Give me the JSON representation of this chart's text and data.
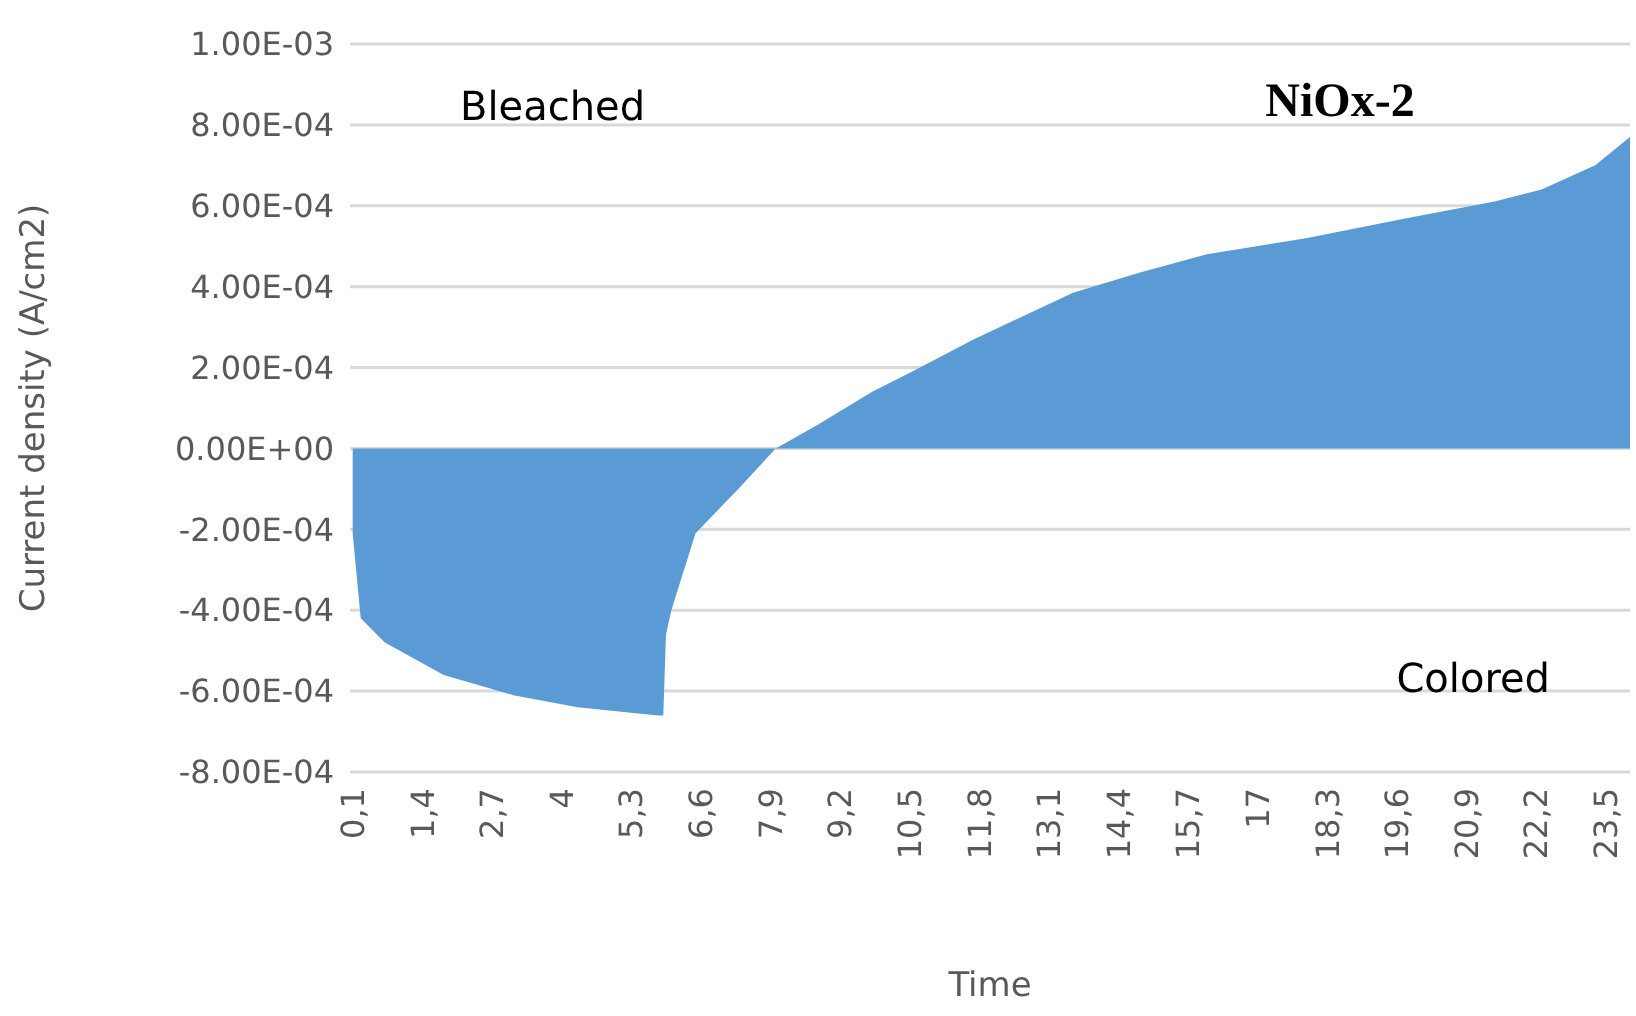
{
  "chart_data": {
    "type": "area",
    "title": "NiOx-2",
    "xlabel": "Time",
    "ylabel": "Current density (A/cm2)",
    "color": "#5b9bd5",
    "annotations": [
      "Bleached",
      "Colored"
    ],
    "x": [
      0.1,
      0.25,
      0.7,
      1.8,
      3.1,
      4.3,
      5.8,
      5.9,
      5.95,
      6.05,
      6.5,
      7.3,
      8.0,
      8.8,
      9.8,
      10.55,
      11.7,
      13.55,
      14.8,
      16.05,
      17.9,
      19.8,
      21.4,
      22.3,
      23.3,
      23.95
    ],
    "values": [
      -0.00021,
      -0.00042,
      -0.00048,
      -0.00056,
      -0.00061,
      -0.00064,
      -0.00066,
      -0.00066,
      -0.00046,
      -0.0004,
      -0.00021,
      -0.0001,
      0,
      6e-05,
      0.00014,
      0.00019,
      0.00027,
      0.000385,
      0.000435,
      0.00048,
      0.00052,
      0.00057,
      0.00061,
      0.00064,
      0.0007,
      0.00077
    ],
    "xlim": [
      0.05,
      23.95
    ],
    "xticks": [
      {
        "value": 0.1,
        "label": "0,1"
      },
      {
        "value": 1.4,
        "label": "1,4"
      },
      {
        "value": 2.7,
        "label": "2,7"
      },
      {
        "value": 4,
        "label": "4"
      },
      {
        "value": 5.3,
        "label": "5,3"
      },
      {
        "value": 6.6,
        "label": "6,6"
      },
      {
        "value": 7.9,
        "label": "7,9"
      },
      {
        "value": 9.2,
        "label": "9,2"
      },
      {
        "value": 10.5,
        "label": "10,5"
      },
      {
        "value": 11.8,
        "label": "11,8"
      },
      {
        "value": 13.1,
        "label": "13,1"
      },
      {
        "value": 14.4,
        "label": "14,4"
      },
      {
        "value": 15.7,
        "label": "15,7"
      },
      {
        "value": 17,
        "label": "17"
      },
      {
        "value": 18.3,
        "label": "18,3"
      },
      {
        "value": 19.6,
        "label": "19,6"
      },
      {
        "value": 20.9,
        "label": "20,9"
      },
      {
        "value": 22.2,
        "label": "22,2"
      },
      {
        "value": 23.5,
        "label": "23,5"
      }
    ],
    "ylim": [
      -0.0008,
      0.001
    ],
    "yticks": [
      {
        "value": -0.0008,
        "label": "-8.00E-04"
      },
      {
        "value": -0.0006,
        "label": "-6.00E-04"
      },
      {
        "value": -0.0004,
        "label": "-4.00E-04"
      },
      {
        "value": -0.0002,
        "label": "-2.00E-04"
      },
      {
        "value": 0,
        "label": "0.00E+00"
      },
      {
        "value": 0.0002,
        "label": "2.00E-04"
      },
      {
        "value": 0.0004,
        "label": "4.00E-04"
      },
      {
        "value": 0.0006,
        "label": "6.00E-04"
      },
      {
        "value": 0.0008,
        "label": "8.00E-04"
      },
      {
        "value": 0.001,
        "label": "1.00E-03"
      }
    ],
    "grid": "y"
  }
}
